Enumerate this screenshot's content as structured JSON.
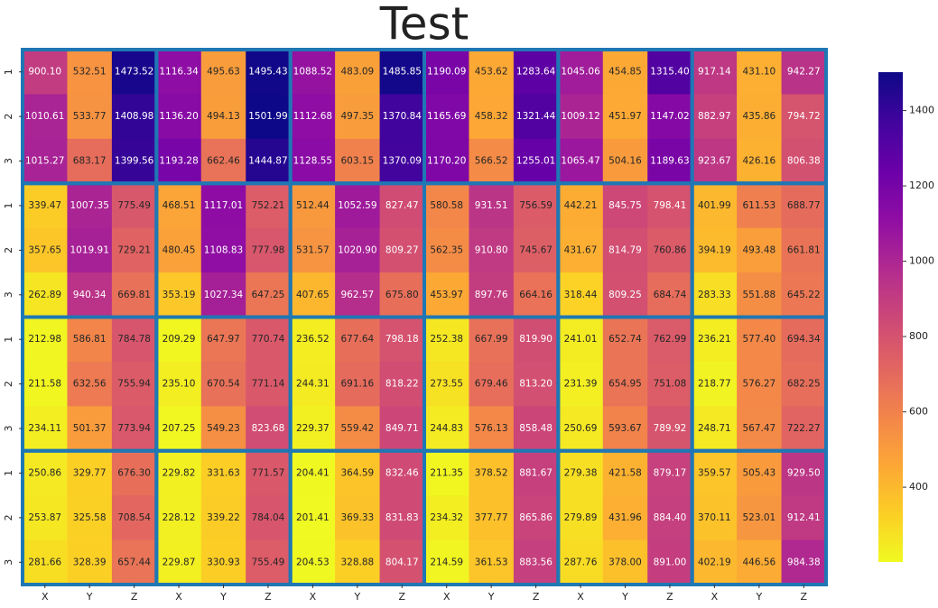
{
  "chart_data": {
    "type": "heatmap",
    "title": "Test",
    "colormap": "plasma_r",
    "x_labels": [
      "X",
      "Y",
      "Z",
      "X",
      "Y",
      "Z",
      "X",
      "Y",
      "Z",
      "X",
      "Y",
      "Z",
      "X",
      "Y",
      "Z",
      "X",
      "Y",
      "Z"
    ],
    "y_labels": [
      "1",
      "2",
      "3",
      "1",
      "2",
      "3",
      "1",
      "2",
      "3",
      "1",
      "2",
      "3"
    ],
    "values": [
      [
        900.1,
        532.51,
        1473.52,
        1116.34,
        495.63,
        1495.43,
        1088.52,
        483.09,
        1485.85,
        1190.09,
        453.62,
        1283.64,
        1045.06,
        454.85,
        1315.4,
        917.14,
        431.1,
        942.27
      ],
      [
        1010.61,
        533.77,
        1408.98,
        1136.2,
        494.13,
        1501.99,
        1112.68,
        497.35,
        1370.84,
        1165.69,
        458.32,
        1321.44,
        1009.12,
        451.97,
        1147.02,
        882.97,
        435.86,
        794.72
      ],
      [
        1015.27,
        683.17,
        1399.56,
        1193.28,
        662.46,
        1444.87,
        1128.55,
        603.15,
        1370.09,
        1170.2,
        566.52,
        1255.01,
        1065.47,
        504.16,
        1189.63,
        923.67,
        426.16,
        806.38
      ],
      [
        339.47,
        1007.35,
        775.49,
        468.51,
        1117.01,
        752.21,
        512.44,
        1052.59,
        827.47,
        580.58,
        931.51,
        756.59,
        442.21,
        845.75,
        798.41,
        401.99,
        611.53,
        688.77
      ],
      [
        357.65,
        1019.91,
        729.21,
        480.45,
        1108.83,
        777.98,
        531.57,
        1020.9,
        809.27,
        562.35,
        910.8,
        745.67,
        431.67,
        814.79,
        760.86,
        394.19,
        493.48,
        661.81
      ],
      [
        262.89,
        940.34,
        669.81,
        353.19,
        1027.34,
        647.25,
        407.65,
        962.57,
        675.8,
        453.97,
        897.76,
        664.16,
        318.44,
        809.25,
        684.74,
        283.33,
        551.88,
        645.22
      ],
      [
        212.98,
        586.81,
        784.78,
        209.29,
        647.97,
        770.74,
        236.52,
        677.64,
        798.18,
        252.38,
        667.99,
        819.9,
        241.01,
        652.74,
        762.99,
        236.21,
        577.4,
        694.34
      ],
      [
        211.58,
        632.56,
        755.94,
        235.1,
        670.54,
        771.14,
        244.31,
        691.16,
        818.22,
        273.55,
        679.46,
        813.2,
        231.39,
        654.95,
        751.08,
        218.77,
        576.27,
        682.25
      ],
      [
        234.11,
        501.37,
        773.94,
        207.25,
        549.23,
        823.68,
        229.37,
        559.42,
        849.71,
        244.83,
        576.13,
        858.48,
        250.69,
        593.67,
        789.92,
        248.71,
        567.47,
        722.27
      ],
      [
        250.86,
        329.77,
        676.3,
        229.82,
        331.63,
        771.57,
        204.41,
        364.59,
        832.46,
        211.35,
        378.52,
        881.67,
        279.38,
        421.58,
        879.17,
        359.57,
        505.43,
        929.5
      ],
      [
        253.87,
        325.58,
        708.54,
        228.12,
        339.22,
        784.04,
        201.41,
        369.33,
        831.83,
        234.32,
        377.77,
        865.86,
        279.89,
        431.96,
        884.4,
        370.11,
        523.01,
        912.41
      ],
      [
        281.66,
        328.39,
        657.44,
        229.87,
        330.93,
        755.49,
        204.53,
        328.88,
        804.17,
        214.59,
        361.53,
        883.56,
        287.76,
        378.0,
        891.0,
        402.19,
        446.56,
        984.38
      ]
    ],
    "value_labels": [
      [
        "900.10",
        "532.51",
        "1473.52",
        "1116.34",
        "495.63",
        "1495.43",
        "1088.52",
        "483.09",
        "1485.85",
        "1190.09",
        "453.62",
        "1283.64",
        "1045.06",
        "454.85",
        "1315.40",
        "917.14",
        "431.10",
        "942.27"
      ],
      [
        "1010.61",
        "533.77",
        "1408.98",
        "1136.20",
        "494.13",
        "1501.99",
        "1112.68",
        "497.35",
        "1370.84",
        "1165.69",
        "458.32",
        "1321.44",
        "1009.12",
        "451.97",
        "1147.02",
        "882.97",
        "435.86",
        "794.72"
      ],
      [
        "1015.27",
        "683.17",
        "1399.56",
        "1193.28",
        "662.46",
        "1444.87",
        "1128.55",
        "603.15",
        "1370.09",
        "1170.20",
        "566.52",
        "1255.01",
        "1065.47",
        "504.16",
        "1189.63",
        "923.67",
        "426.16",
        "806.38"
      ],
      [
        "339.47",
        "1007.35",
        "775.49",
        "468.51",
        "1117.01",
        "752.21",
        "512.44",
        "1052.59",
        "827.47",
        "580.58",
        "931.51",
        "756.59",
        "442.21",
        "845.75",
        "798.41",
        "401.99",
        "611.53",
        "688.77"
      ],
      [
        "357.65",
        "1019.91",
        "729.21",
        "480.45",
        "1108.83",
        "777.98",
        "531.57",
        "1020.90",
        "809.27",
        "562.35",
        "910.80",
        "745.67",
        "431.67",
        "814.79",
        "760.86",
        "394.19",
        "493.48",
        "661.81"
      ],
      [
        "262.89",
        "940.34",
        "669.81",
        "353.19",
        "1027.34",
        "647.25",
        "407.65",
        "962.57",
        "675.80",
        "453.97",
        "897.76",
        "664.16",
        "318.44",
        "809.25",
        "684.74",
        "283.33",
        "551.88",
        "645.22"
      ],
      [
        "212.98",
        "586.81",
        "784.78",
        "209.29",
        "647.97",
        "770.74",
        "236.52",
        "677.64",
        "798.18",
        "252.38",
        "667.99",
        "819.90",
        "241.01",
        "652.74",
        "762.99",
        "236.21",
        "577.40",
        "694.34"
      ],
      [
        "211.58",
        "632.56",
        "755.94",
        "235.10",
        "670.54",
        "771.14",
        "244.31",
        "691.16",
        "818.22",
        "273.55",
        "679.46",
        "813.20",
        "231.39",
        "654.95",
        "751.08",
        "218.77",
        "576.27",
        "682.25"
      ],
      [
        "234.11",
        "501.37",
        "773.94",
        "207.25",
        "549.23",
        "823.68",
        "229.37",
        "559.42",
        "849.71",
        "244.83",
        "576.13",
        "858.48",
        "250.69",
        "593.67",
        "789.92",
        "248.71",
        "567.47",
        "722.27"
      ],
      [
        "250.86",
        "329.77",
        "676.30",
        "229.82",
        "331.63",
        "771.57",
        "204.41",
        "364.59",
        "832.46",
        "211.35",
        "378.52",
        "881.67",
        "279.38",
        "421.58",
        "879.17",
        "359.57",
        "505.43",
        "929.50"
      ],
      [
        "253.87",
        "325.58",
        "708.54",
        "228.12",
        "339.22",
        "784.04",
        "201.41",
        "369.33",
        "831.83",
        "234.32",
        "377.77",
        "865.86",
        "279.89",
        "431.96",
        "884.40",
        "370.11",
        "523.01",
        "912.41"
      ],
      [
        "281.66",
        "328.39",
        "657.44",
        "229.87",
        "330.93",
        "755.49",
        "204.53",
        "328.88",
        "804.17",
        "214.59",
        "361.53",
        "883.56",
        "287.76",
        "378.00",
        "891.00",
        "402.19",
        "446.56",
        "984.38"
      ]
    ],
    "zlim": [
      201.41,
      1501.99
    ],
    "colorbar_ticks": [
      400,
      600,
      800,
      1000,
      1200,
      1400
    ],
    "block_color": "#1f77b4"
  }
}
